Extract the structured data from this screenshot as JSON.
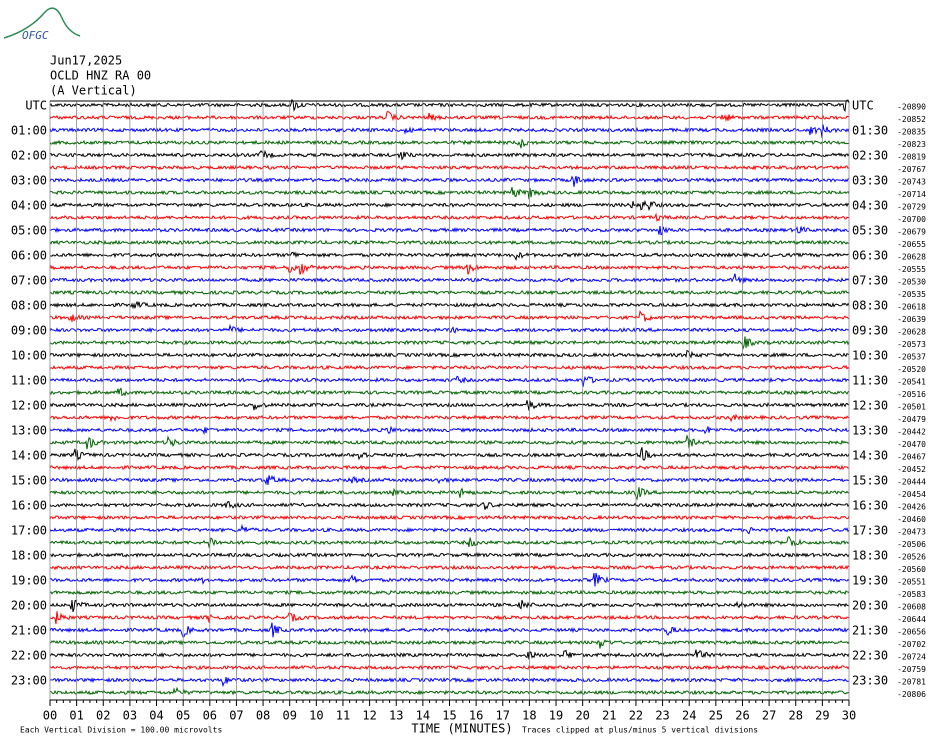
{
  "header": {
    "logo": "OFGC",
    "date": "Jun17,2025",
    "station": "OCLD HNZ RA 00",
    "component": "(A Vertical)"
  },
  "trace_colors": [
    "#000000",
    "#ff0000",
    "#0000ff",
    "#006400"
  ],
  "left_labels": [
    "UTC",
    "01:00",
    "02:00",
    "03:00",
    "04:00",
    "05:00",
    "06:00",
    "07:00",
    "08:00",
    "09:00",
    "10:00",
    "11:00",
    "12:00",
    "13:00",
    "14:00",
    "15:00",
    "16:00",
    "17:00",
    "18:00",
    "19:00",
    "20:00",
    "21:00",
    "22:00",
    "23:00"
  ],
  "right_labels": [
    "UTC",
    "01:30",
    "02:30",
    "03:30",
    "04:30",
    "05:30",
    "06:30",
    "07:30",
    "08:30",
    "09:30",
    "10:30",
    "11:30",
    "12:30",
    "13:30",
    "14:30",
    "15:30",
    "16:30",
    "17:30",
    "18:30",
    "19:30",
    "20:30",
    "21:30",
    "22:30",
    "23:30"
  ],
  "offsets": [
    -20890,
    -20852,
    -20835,
    -20823,
    -20819,
    -20767,
    -20743,
    -20714,
    -20729,
    -20700,
    -20679,
    -20655,
    -20628,
    -20555,
    -20530,
    -20535,
    -20618,
    -20639,
    -20628,
    -20573,
    -20537,
    -20520,
    -20541,
    -20516,
    -20501,
    -20479,
    -20442,
    -20470,
    -20467,
    -20452,
    -20444,
    -20454,
    -20426,
    -20460,
    -20473,
    -20506,
    -20526,
    -20560,
    -20551,
    -20583,
    -20608,
    -20644,
    -20656,
    -20702,
    -20724,
    -20759,
    -20781,
    -20806
  ],
  "x_labels": [
    "00",
    "01",
    "02",
    "03",
    "04",
    "05",
    "06",
    "07",
    "08",
    "09",
    "10",
    "11",
    "12",
    "13",
    "14",
    "15",
    "16",
    "17",
    "18",
    "19",
    "20",
    "21",
    "22",
    "23",
    "24",
    "25",
    "26",
    "27",
    "28",
    "29",
    "30"
  ],
  "footer": {
    "scale": "Each Vertical Division =  100.00 microvolts",
    "axis_title": "TIME (MINUTES)",
    "clip": "Traces clipped at plus/minus 5 vertical divisions"
  }
}
